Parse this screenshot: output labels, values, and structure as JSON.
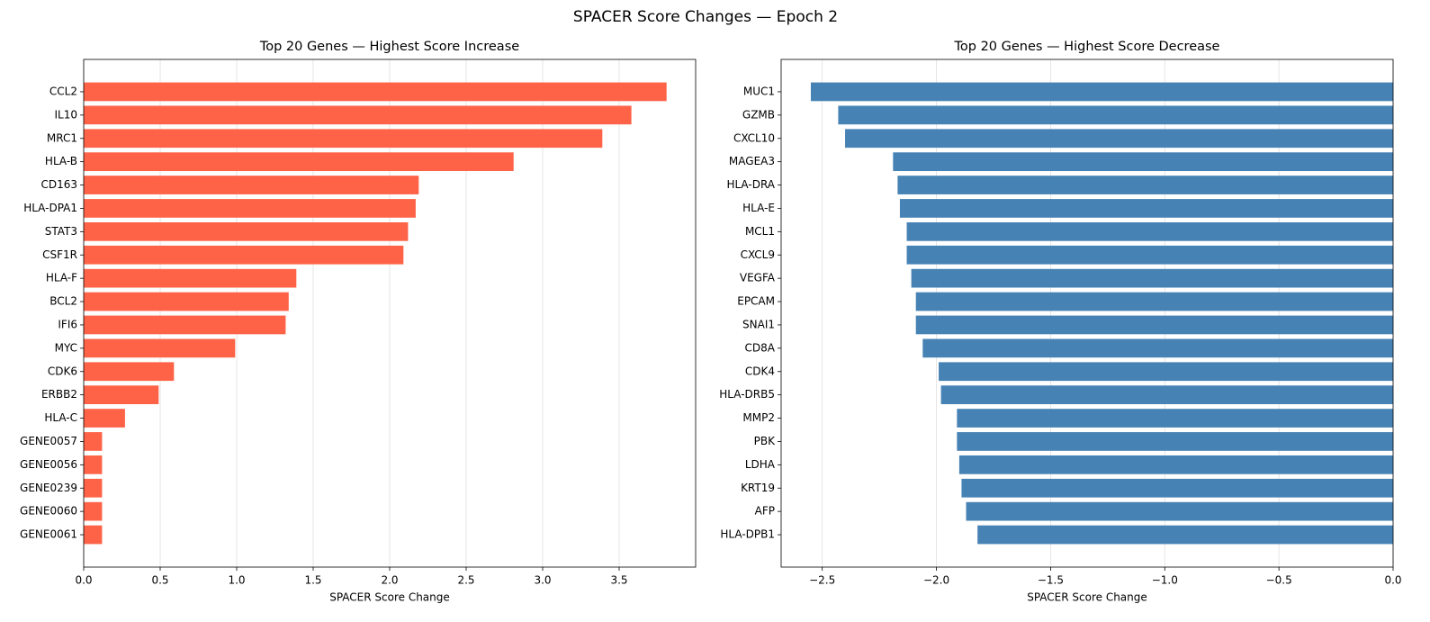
{
  "title": "SPACER Score Changes — Epoch 2",
  "chart_data": [
    {
      "type": "barh",
      "title": "Top 20 Genes — Highest Score Increase",
      "xlabel": "SPACER Score Change",
      "color": "#ff6347",
      "grid": true,
      "categories": [
        "CCL2",
        "IL10",
        "MRC1",
        "HLA-B",
        "CD163",
        "HLA-DPA1",
        "STAT3",
        "CSF1R",
        "HLA-F",
        "BCL2",
        "IFI6",
        "MYC",
        "CDK6",
        "ERBB2",
        "HLA-C",
        "GENE0057",
        "GENE0056",
        "GENE0239",
        "GENE0060",
        "GENE0061"
      ],
      "values": [
        3.81,
        3.58,
        3.39,
        2.81,
        2.19,
        2.17,
        2.12,
        2.09,
        1.39,
        1.34,
        1.32,
        0.99,
        0.59,
        0.49,
        0.27,
        0.12,
        0.12,
        0.12,
        0.12,
        0.12
      ],
      "xlim": [
        0,
        4.0
      ],
      "xticks": [
        {
          "value": 0,
          "label": "0.0"
        },
        0.5,
        {
          "value": 1,
          "label": "1.0"
        },
        1.5,
        {
          "value": 2,
          "label": "2.0"
        },
        2.5,
        {
          "value": 3,
          "label": "3.0"
        },
        3.5
      ]
    },
    {
      "type": "barh",
      "title": "Top 20 Genes — Highest Score Decrease",
      "xlabel": "SPACER Score Change",
      "color": "#4682b4",
      "grid": true,
      "categories": [
        "MUC1",
        "GZMB",
        "CXCL10",
        "MAGEA3",
        "HLA-DRA",
        "HLA-E",
        "MCL1",
        "CXCL9",
        "VEGFA",
        "EPCAM",
        "SNAI1",
        "CD8A",
        "CDK4",
        "HLA-DRB5",
        "MMP2",
        "PBK",
        "LDHA",
        "KRT19",
        "AFP",
        "HLA-DPB1"
      ],
      "values": [
        -2.55,
        -2.43,
        -2.4,
        -2.19,
        -2.17,
        -2.16,
        -2.13,
        -2.13,
        -2.11,
        -2.09,
        -2.09,
        -2.06,
        -1.99,
        -1.98,
        -1.91,
        -1.91,
        -1.9,
        -1.89,
        -1.87,
        -1.82
      ],
      "xlim": [
        -2.68,
        0
      ],
      "xticks": [
        {
          "value": -2.5,
          "label": "−2.5"
        },
        {
          "value": -2,
          "label": "−2.0"
        },
        {
          "value": -1.5,
          "label": "−1.5"
        },
        {
          "value": -1,
          "label": "−1.0"
        },
        {
          "value": -0.5,
          "label": "−0.5"
        },
        {
          "value": 0,
          "label": "0.0"
        }
      ]
    }
  ]
}
